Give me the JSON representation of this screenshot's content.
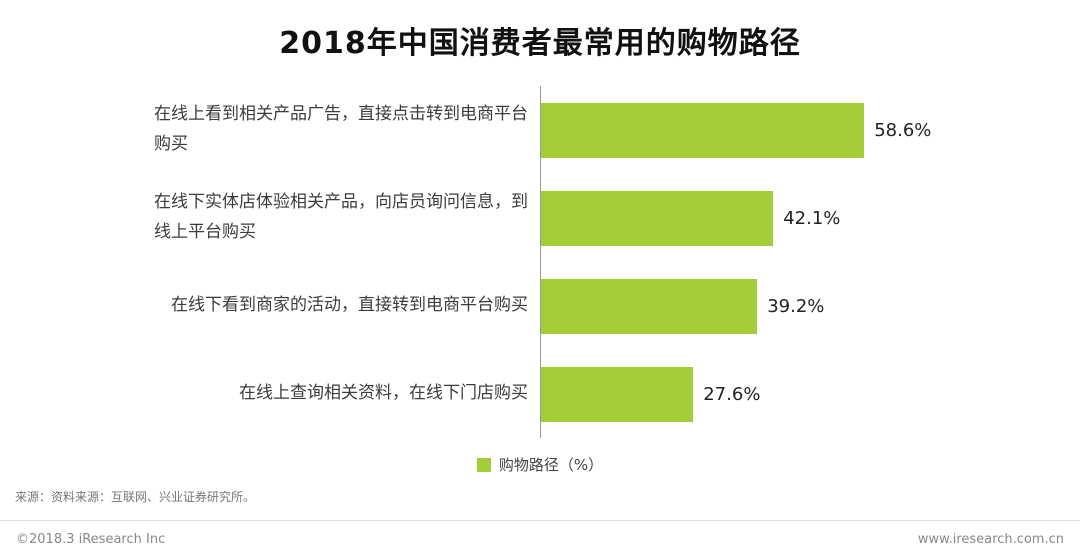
{
  "title": "2018年中国消费者最常用的购物路径",
  "chart_data": {
    "type": "bar",
    "orientation": "horizontal",
    "title": "2018年中国消费者最常用的购物路径",
    "categories": [
      "在线上看到相关产品广告，直接点击转到电商平台购买",
      "在线下实体店体验相关产品，向店员询问信息，到线上平台购买",
      "在线下看到商家的活动，直接转到电商平台购买",
      "在线上查询相关资料，在线下门店购买"
    ],
    "category_lines": [
      [
        "在线上看到相关产品广告，直接点击转到电商平台",
        "购买"
      ],
      [
        "在线下实体店体验相关产品，向店员询问信息，到",
        "线上平台购买"
      ],
      [
        "在线下看到商家的活动，直接转到电商平台购买"
      ],
      [
        "在线上查询相关资料，在线下门店购买"
      ]
    ],
    "values": [
      58.6,
      42.1,
      39.2,
      27.6
    ],
    "value_labels": [
      "58.6%",
      "42.1%",
      "39.2%",
      "27.6%"
    ],
    "unit": "%",
    "legend": {
      "label": "购物路径（%）"
    },
    "legend_position": "bottom",
    "bar_color": "#a3cc39",
    "axis_color": "#999999",
    "axis_max": 95,
    "grid": false
  },
  "footer": {
    "source_note": "来源：资料来源：互联网、兴业证券研究所。",
    "copyright": "©2018.3 iResearch Inc",
    "website": "www.iresearch.com.cn"
  }
}
